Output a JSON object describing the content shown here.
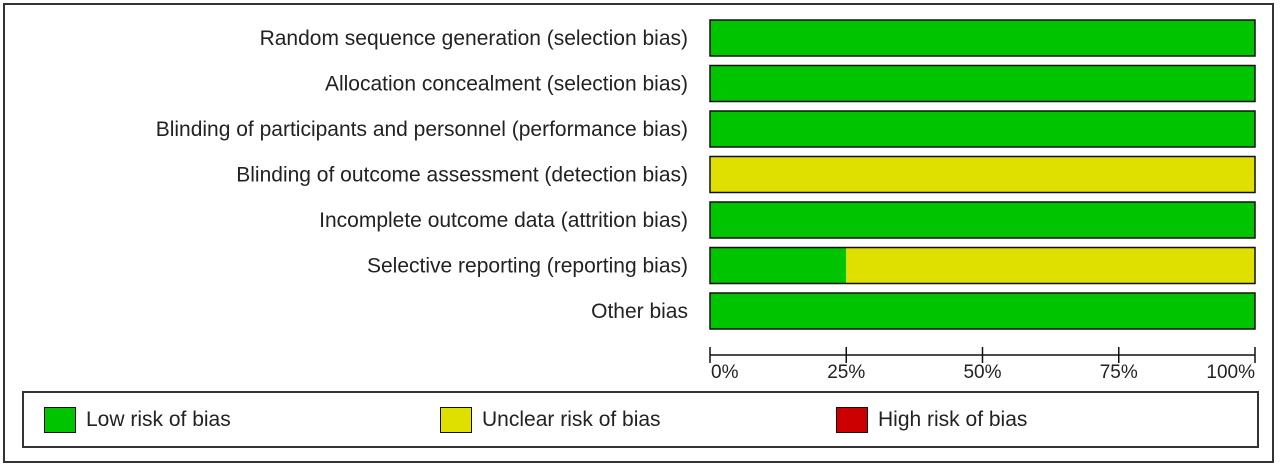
{
  "chart_data": {
    "type": "bar",
    "orientation": "horizontal",
    "stacked": true,
    "percent": true,
    "categories": [
      "Random sequence generation (selection bias)",
      "Allocation concealment (selection bias)",
      "Blinding of participants and personnel (performance bias)",
      "Blinding of outcome assessment (detection bias)",
      "Incomplete outcome data (attrition bias)",
      "Selective reporting (reporting bias)",
      "Other bias"
    ],
    "series": [
      {
        "name": "Low risk of bias",
        "color": "#00c400",
        "values": [
          100,
          100,
          100,
          0,
          100,
          25,
          100
        ]
      },
      {
        "name": "Unclear risk of bias",
        "color": "#e0e000",
        "values": [
          0,
          0,
          0,
          100,
          0,
          75,
          0
        ]
      },
      {
        "name": "High risk of bias",
        "color": "#cc0000",
        "values": [
          0,
          0,
          0,
          0,
          0,
          0,
          0
        ]
      }
    ],
    "xlim": [
      0,
      100
    ],
    "xticks": [
      "0%",
      "25%",
      "50%",
      "75%",
      "100%"
    ],
    "title": "",
    "xlabel": "",
    "ylabel": "",
    "grid": false,
    "legend_position": "bottom"
  }
}
